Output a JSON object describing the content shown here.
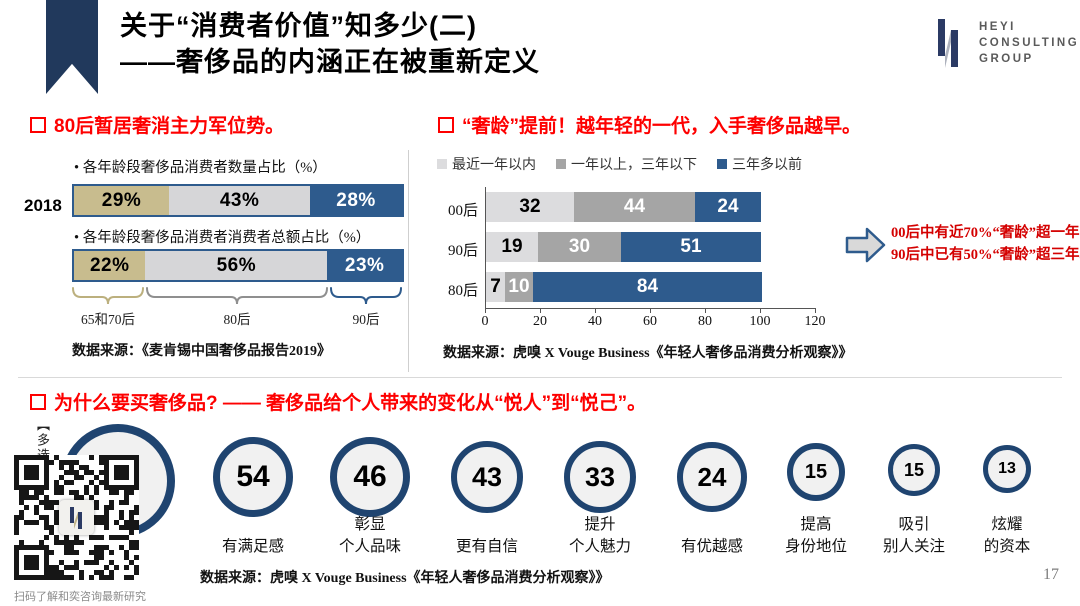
{
  "slide": {
    "title_line1": "关于“消费者价值”知多少(二)",
    "title_line2": "——奢侈品的内涵正在被重新定义",
    "page_number": "17"
  },
  "logo": {
    "line1": "HEYI",
    "line2": "CONSULTING",
    "line3": "GROUP"
  },
  "left_panel": {
    "heading": "80后暂居奢消主力军位势。",
    "year": "2018",
    "chart1_title": "• 各年龄段奢侈品消费者数量占比（%）",
    "chart2_title": "• 各年龄段奢侈品消费者消费者总额占比（%）",
    "bar1_labels": [
      "29%",
      "43%",
      "28%"
    ],
    "bar2_labels": [
      "22%",
      "56%",
      "23%"
    ],
    "brace_labels": [
      "65和70后",
      "80后",
      "90后"
    ],
    "source": "数据来源：《麦肯锡中国奢侈品报告2019》"
  },
  "right_panel": {
    "heading": "“奢龄”提前！越年轻的一代，入手奢侈品越早。",
    "legend": [
      "最近一年以内",
      "一年以上，三年以下",
      "三年多以前"
    ],
    "annotation_line1": "00后中有近70%“奢龄”超一年，",
    "annotation_line2": "90后中已有50%“奢龄”超三年。",
    "source": "数据来源：虎嗅 X Vouge Business《年轻人奢侈品消费分析观察》》"
  },
  "bottom_panel": {
    "heading": "为什么要买奢侈品? —— 奢侈品给个人带来的变化从“悦人”到“悦己”。",
    "note_vertical": "【多选",
    "qr_caption": "扫码了解和奕咨询最新研究",
    "source": "数据来源：虎嗅 X Vouge Business《年轻人奢侈品消费分析观察》》",
    "circles": [
      {
        "value": "",
        "label1": "",
        "label2": ""
      },
      {
        "value": "54",
        "label1": "有满足感",
        "label2": ""
      },
      {
        "value": "46",
        "label1": "彰显",
        "label2": "个人品味"
      },
      {
        "value": "43",
        "label1": "更有自信",
        "label2": ""
      },
      {
        "value": "33",
        "label1": "提升",
        "label2": "个人魅力"
      },
      {
        "value": "24",
        "label1": "有优越感",
        "label2": ""
      },
      {
        "value": "15",
        "label1": "提高",
        "label2": "身份地位"
      },
      {
        "value": "15",
        "label1": "吸引",
        "label2": "别人关注"
      },
      {
        "value": "13",
        "label1": "炫耀",
        "label2": "的资本"
      }
    ]
  },
  "chart_data": [
    {
      "type": "bar",
      "subtype": "stacked-horizontal-100",
      "title": "各年龄段奢侈品消费者数量占比（%）",
      "year": "2018",
      "categories": [
        "65和70后",
        "80后",
        "90后"
      ],
      "values": [
        29,
        43,
        28
      ],
      "unit": "%",
      "segment_colors": [
        "#C8BC8E",
        "#D6D6D8",
        "#2E5B8D"
      ]
    },
    {
      "type": "bar",
      "subtype": "stacked-horizontal-100",
      "title": "各年龄段奢侈品消费者消费者总额占比（%）",
      "year": "2018",
      "categories": [
        "65和70后",
        "80后",
        "90后"
      ],
      "values": [
        22,
        56,
        23
      ],
      "unit": "%",
      "segment_colors": [
        "#C8BC8E",
        "#D6D6D8",
        "#2E5B8D"
      ]
    },
    {
      "type": "bar",
      "subtype": "stacked-horizontal",
      "categories": [
        "00后",
        "90后",
        "80后"
      ],
      "series": [
        {
          "name": "最近一年以内",
          "values": [
            32,
            19,
            7
          ],
          "color": "#DCDCDE"
        },
        {
          "name": "一年以上，三年以下",
          "values": [
            44,
            30,
            10
          ],
          "color": "#A5A5A5"
        },
        {
          "name": "三年多以前",
          "values": [
            24,
            51,
            84
          ],
          "color": "#2E5B8D"
        }
      ],
      "xlim": [
        0,
        120
      ],
      "xticks": [
        "0",
        "20",
        "40",
        "60",
        "80",
        "100",
        "120"
      ],
      "legend_position": "top"
    },
    {
      "type": "bubble",
      "title": "为什么要买奢侈品?",
      "values": [
        null,
        54,
        46,
        43,
        33,
        24,
        15,
        15,
        13
      ],
      "labels": [
        "",
        "有满足感",
        "彰显个人品味",
        "更有自信",
        "提升个人魅力",
        "有优越感",
        "提高身份地位",
        "吸引别人关注",
        "炫耀的资本"
      ],
      "note": "第一个圆的数值被二维码遮挡"
    }
  ],
  "colors": {
    "heading_red": "#FE0000",
    "annotation_red": "#D40000",
    "navy": "#21395C",
    "bar_blue": "#2E5B8D",
    "tan": "#C8BC8E",
    "light_gray": "#DCDCDE",
    "mid_gray": "#A5A5A5",
    "circle_border": "#1F4470"
  }
}
